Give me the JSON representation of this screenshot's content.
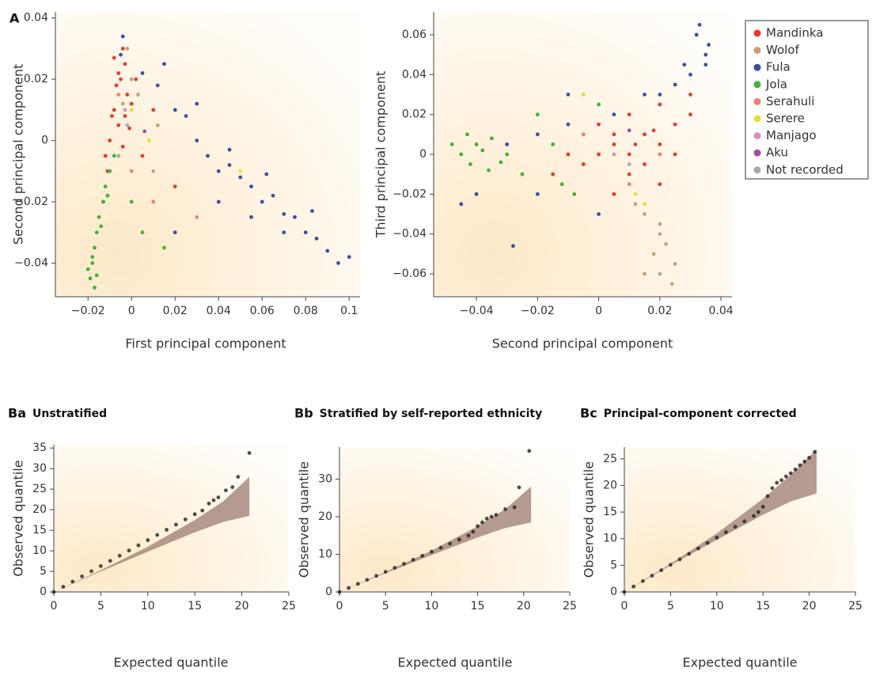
{
  "chart_data": [
    {
      "type": "scatter",
      "panel": "A",
      "xlabel": "First principal component",
      "ylabel": "Second principal component",
      "xlim": [
        -0.035,
        0.105
      ],
      "ylim": [
        -0.051,
        0.042
      ],
      "xticks": [
        {
          "value": -0.02,
          "label": "−0.02"
        },
        0,
        0.02,
        0.04,
        0.06,
        0.08,
        0.1
      ],
      "yticks": [
        {
          "value": -0.04,
          "label": "−0.04"
        },
        {
          "value": -0.02,
          "label": "−0.02"
        },
        0,
        0.02,
        0.04
      ],
      "series": [
        {
          "color": "#e8392a",
          "x": [
            -0.005,
            -0.003,
            -0.008,
            -0.002,
            -0.006,
            -0.01,
            -0.004,
            0.0,
            -0.007,
            -0.012,
            -0.009,
            -0.003,
            0.002,
            -0.006,
            -0.011,
            0.005,
            0.01,
            -0.001,
            -0.008,
            -0.004,
            0.02,
            -0.013
          ],
          "values": [
            0.02,
            0.025,
            0.01,
            0.015,
            0.005,
            0.0,
            0.03,
            0.012,
            0.018,
            -0.005,
            0.008,
            0.008,
            0.02,
            0.022,
            -0.01,
            -0.005,
            0.01,
            0.004,
            0.027,
            -0.002,
            -0.015,
            -0.02
          ]
        },
        {
          "color": "#c9a27a",
          "x": [
            -0.002,
            0.0,
            -0.004,
            0.003,
            -0.006,
            0.012
          ],
          "values": [
            0.03,
            0.02,
            0.012,
            0.015,
            -0.005,
            0.005
          ]
        },
        {
          "color": "#3a4fa3",
          "x": [
            -0.004,
            -0.005,
            0.005,
            0.012,
            0.02,
            0.025,
            0.03,
            0.035,
            0.04,
            0.045,
            0.05,
            0.055,
            0.06,
            0.065,
            0.07,
            0.075,
            0.08,
            0.085,
            0.09,
            0.095,
            0.1,
            0.062,
            0.045,
            0.03,
            0.015,
            0.07,
            0.083,
            0.04,
            0.02,
            0.055
          ],
          "values": [
            0.034,
            0.028,
            0.022,
            0.018,
            0.01,
            0.008,
            0.0,
            -0.005,
            -0.01,
            -0.008,
            -0.012,
            -0.015,
            -0.02,
            -0.018,
            -0.024,
            -0.025,
            -0.03,
            -0.032,
            -0.036,
            -0.04,
            -0.038,
            -0.011,
            -0.003,
            0.012,
            0.025,
            -0.03,
            -0.023,
            -0.02,
            -0.03,
            -0.025
          ]
        },
        {
          "color": "#3db33a",
          "x": [
            -0.018,
            -0.019,
            -0.017,
            -0.016,
            -0.015,
            -0.013,
            -0.012,
            -0.02,
            -0.018,
            -0.014,
            -0.01,
            -0.008,
            -0.017,
            -0.016,
            0.005,
            0.015,
            0.0,
            -0.011
          ],
          "values": [
            -0.04,
            -0.045,
            -0.035,
            -0.03,
            -0.025,
            -0.02,
            -0.015,
            -0.042,
            -0.038,
            -0.028,
            -0.01,
            -0.005,
            -0.048,
            -0.044,
            -0.03,
            -0.035,
            -0.02,
            -0.018
          ]
        },
        {
          "color": "#f08070",
          "x": [
            -0.006,
            0.0,
            0.01,
            0.03
          ],
          "values": [
            0.015,
            -0.01,
            -0.02,
            -0.025
          ]
        },
        {
          "color": "#e6e030",
          "x": [
            0.0,
            0.008,
            0.05
          ],
          "values": [
            0.01,
            0.0,
            -0.01
          ]
        },
        {
          "color": "#d98ec6",
          "x": [
            -0.003
          ],
          "values": [
            0.01
          ]
        },
        {
          "color": "#a050a0",
          "x": [
            0.006
          ],
          "values": [
            0.003
          ]
        },
        {
          "color": "#a8a8b0",
          "x": [
            -0.002,
            0.01
          ],
          "values": [
            0.005,
            -0.01
          ]
        }
      ]
    },
    {
      "type": "scatter",
      "xlabel": "Second principal component",
      "ylabel": "Third principal component",
      "legend": "outside-right",
      "xlim": [
        -0.054,
        0.0436
      ],
      "ylim": [
        -0.0715,
        0.0715
      ],
      "xticks": [
        {
          "value": -0.04,
          "label": "−0.04"
        },
        {
          "value": -0.02,
          "label": "−0.02"
        },
        0,
        0.02,
        0.04
      ],
      "yticks": [
        {
          "value": -0.06,
          "label": "−0.06"
        },
        {
          "value": -0.04,
          "label": "−0.04"
        },
        {
          "value": -0.02,
          "label": "−0.02"
        },
        0,
        0.02,
        0.04,
        0.06
      ],
      "series": [
        {
          "name": "Mandinka",
          "color": "#e8392a",
          "x": [
            0.005,
            0.01,
            0.015,
            0.02,
            0.0,
            0.01,
            0.025,
            0.03,
            0.005,
            0.015,
            -0.005,
            0.02,
            0.01,
            0.0,
            -0.01,
            0.025,
            0.005,
            0.012,
            0.018,
            -0.015,
            0.03,
            0.02
          ],
          "values": [
            0.005,
            0.0,
            0.01,
            0.005,
            0.0,
            -0.01,
            0.015,
            0.02,
            0.01,
            -0.005,
            -0.005,
            -0.015,
            0.02,
            0.015,
            0.0,
            0.0,
            -0.02,
            0.005,
            0.012,
            -0.01,
            0.03,
            0.025
          ]
        },
        {
          "name": "Wolof",
          "color": "#c9a27a",
          "x": [
            0.015,
            0.02,
            0.018,
            0.022,
            0.025,
            0.015,
            0.02,
            0.012,
            0.024
          ],
          "values": [
            -0.03,
            -0.04,
            -0.05,
            -0.045,
            -0.055,
            -0.06,
            -0.035,
            -0.025,
            -0.065
          ]
        },
        {
          "name": "Fula",
          "color": "#3a4fa3",
          "x": [
            0.03,
            0.035,
            0.032,
            0.028,
            0.025,
            0.02,
            0.036,
            0.033,
            0.015,
            0.005,
            -0.01,
            -0.02,
            -0.03,
            -0.04,
            -0.02,
            -0.01,
            0.0,
            -0.028,
            -0.045,
            0.035
          ],
          "values": [
            0.04,
            0.05,
            0.06,
            0.045,
            0.035,
            0.03,
            0.055,
            0.065,
            0.03,
            0.02,
            0.015,
            0.01,
            0.005,
            -0.02,
            -0.02,
            0.03,
            -0.03,
            -0.046,
            -0.025,
            0.045
          ]
        },
        {
          "name": "Jola",
          "color": "#3db33a",
          "x": [
            -0.045,
            -0.04,
            -0.042,
            -0.038,
            -0.035,
            -0.048,
            -0.036,
            -0.03,
            -0.025,
            -0.015,
            -0.012,
            -0.005,
            -0.02,
            -0.043,
            -0.032,
            -0.008,
            0.0
          ],
          "values": [
            0.0,
            0.005,
            -0.005,
            0.002,
            0.008,
            0.005,
            -0.008,
            0.0,
            -0.01,
            0.005,
            -0.015,
            0.03,
            0.02,
            0.01,
            -0.004,
            -0.02,
            0.025
          ]
        },
        {
          "name": "Serahuli",
          "color": "#f08070",
          "x": [
            0.01,
            0.02,
            -0.005
          ],
          "values": [
            -0.015,
            0.0,
            0.01
          ]
        },
        {
          "name": "Serere",
          "color": "#e6e030",
          "x": [
            0.015,
            0.012,
            -0.005
          ],
          "values": [
            -0.025,
            -0.02,
            0.03
          ]
        },
        {
          "name": "Manjago",
          "color": "#d98ec6",
          "x": [
            0.005
          ],
          "values": [
            0.0
          ]
        },
        {
          "name": "Aku",
          "color": "#a050a0",
          "x": [
            0.01
          ],
          "values": [
            0.012
          ]
        },
        {
          "name": "Not recorded",
          "color": "#a8a8b0",
          "x": [
            0.02,
            0.01
          ],
          "values": [
            -0.06,
            -0.005
          ]
        }
      ]
    },
    {
      "type": "qq",
      "panel": "Ba",
      "title": "Unstratified",
      "xlabel": "Expected quantile",
      "ylabel": "Observed quantile",
      "xlim": [
        0,
        25
      ],
      "ylim": [
        0,
        35.8
      ],
      "xticks": [
        0,
        5,
        10,
        15,
        20,
        25
      ],
      "yticks": [
        0,
        5,
        10,
        15,
        20,
        25,
        30,
        35
      ],
      "band": {
        "color": "#a88a80",
        "x": [
          0,
          5,
          10,
          15,
          18,
          20.8
        ],
        "lower": [
          0,
          5,
          9.8,
          14.5,
          17,
          18.5
        ],
        "upper": [
          0,
          5.3,
          11,
          17.5,
          22,
          28
        ]
      },
      "series": [
        {
          "color": "#222222",
          "x": [
            0,
            1,
            2,
            3,
            4,
            5,
            6,
            7,
            8,
            9,
            10,
            11,
            12,
            13,
            14,
            15,
            15.8,
            16.5,
            17,
            17.5,
            18.3,
            19,
            19.6,
            20.8
          ],
          "values": [
            0,
            1.26,
            2.52,
            3.78,
            5.04,
            6.3,
            7.56,
            8.82,
            10.08,
            11.34,
            12.6,
            13.86,
            15.12,
            16.38,
            17.64,
            18.9,
            19.8,
            21.5,
            22.3,
            23,
            24.7,
            25.5,
            28,
            33.8
          ]
        }
      ]
    },
    {
      "type": "qq",
      "panel": "Bb",
      "title": "Stratified by self-reported ethnicity",
      "xlabel": "Expected quantile",
      "ylabel": "Observed quantile",
      "xlim": [
        0,
        25
      ],
      "ylim": [
        0,
        38.5
      ],
      "xticks": [
        0,
        5,
        10,
        15,
        20,
        25
      ],
      "yticks": [
        0,
        10,
        20,
        30
      ],
      "band": {
        "color": "#a88a80",
        "x": [
          0,
          5,
          10,
          15,
          18,
          20.8
        ],
        "lower": [
          0,
          5,
          9.8,
          14.5,
          17,
          18.5
        ],
        "upper": [
          0,
          5.3,
          11,
          17.5,
          22,
          28
        ]
      },
      "series": [
        {
          "color": "#222222",
          "x": [
            0,
            1,
            2,
            3,
            4,
            5,
            6,
            7,
            8,
            9,
            10,
            11,
            12,
            13,
            14,
            14.5,
            15,
            15.5,
            16,
            16.5,
            17,
            18,
            19,
            19.5,
            20.6
          ],
          "values": [
            0,
            1.07,
            2.14,
            3.21,
            4.28,
            5.35,
            6.42,
            7.49,
            8.56,
            9.63,
            10.7,
            11.77,
            12.84,
            13.91,
            14.98,
            16,
            17.5,
            18.5,
            19.5,
            20,
            20.5,
            22,
            22.5,
            27.8,
            37.5
          ]
        }
      ]
    },
    {
      "type": "qq",
      "panel": "Bc",
      "title": "Principal-component corrected",
      "xlabel": "Expected quantile",
      "ylabel": "Observed quantile",
      "xlim": [
        0,
        25
      ],
      "ylim": [
        0,
        27.2
      ],
      "xticks": [
        0,
        5,
        10,
        15,
        20,
        25
      ],
      "yticks": [
        0,
        5,
        10,
        15,
        20,
        25
      ],
      "band": {
        "color": "#a88a80",
        "x": [
          0,
          5,
          10,
          15,
          18,
          20.8
        ],
        "lower": [
          0,
          5,
          9.8,
          14.5,
          17,
          18.5
        ],
        "upper": [
          0,
          5.3,
          11,
          17.5,
          22,
          26.8
        ]
      },
      "series": [
        {
          "color": "#222222",
          "x": [
            0,
            1,
            2,
            3,
            4,
            5,
            6,
            7,
            8,
            9,
            10,
            11,
            12,
            13,
            14,
            14.5,
            15,
            15.5,
            16,
            16.5,
            17,
            17.5,
            18,
            18.5,
            19,
            19.5,
            20,
            20.6
          ],
          "values": [
            0,
            1.02,
            2.04,
            3.06,
            4.08,
            5.1,
            6.12,
            7.14,
            8.16,
            9.18,
            10.2,
            11.22,
            12.24,
            13.26,
            14.28,
            15,
            16,
            18,
            19.5,
            20.5,
            21,
            21.7,
            22.3,
            23,
            23.8,
            24.5,
            25.2,
            26.3
          ]
        }
      ]
    }
  ]
}
